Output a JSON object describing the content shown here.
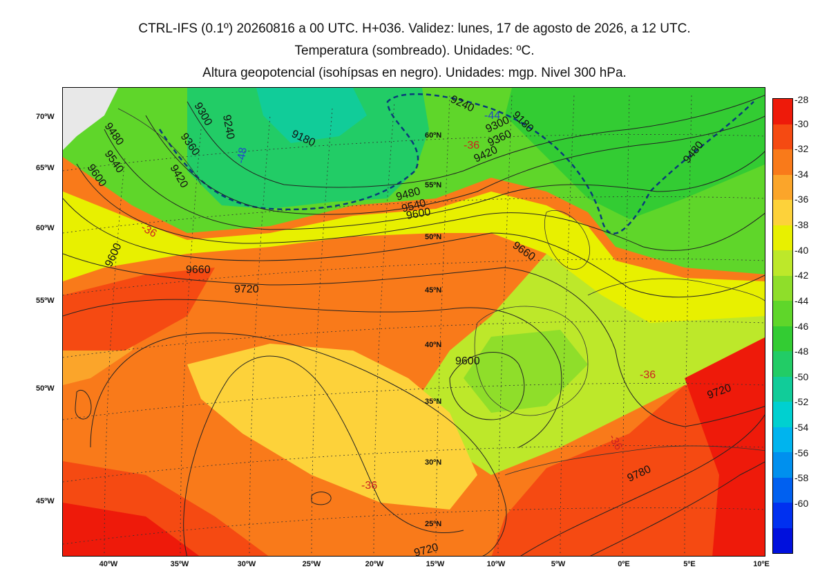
{
  "header": {
    "line1": "CTRL-IFS (0.1º) 20260816 a 00 UTC. H+036. Validez: lunes, 17 de agosto de 2026, a 12 UTC.",
    "line2": "Temperatura (sombreado). Unidades: ºC.",
    "line3": "Altura geopotencial (isohípsas en negro). Unidades: mgp. Nivel 300 hPa."
  },
  "map": {
    "lat_labels": [
      "70ºW",
      "65ºW",
      "60ºW",
      "55ºW",
      "50ºW",
      "45ºW"
    ],
    "lon_labels": [
      "40ºW",
      "35ºW",
      "30ºW",
      "25ºW",
      "20ºW",
      "15ºW",
      "10ºW",
      "5ºW",
      "0ºE",
      "5ºE",
      "10ºE"
    ],
    "inner_lat_labels": [
      "60ºN",
      "55ºN",
      "50ºN",
      "45ºN",
      "40ºN",
      "35ºN",
      "30ºN",
      "25ºN"
    ],
    "geopotential_labels": [
      "9180",
      "9240",
      "9300",
      "9360",
      "9420",
      "9480",
      "9540",
      "9600",
      "9660",
      "9720",
      "9780",
      "9240",
      "9300",
      "9360",
      "9420",
      "9480",
      "9540",
      "9600",
      "9660",
      "9600",
      "9720",
      "9720",
      "9780",
      "9180",
      "9480"
    ],
    "temperature_labels": [
      "-36",
      "-36",
      "-36",
      "-36",
      "-36",
      "-48",
      "-44"
    ],
    "colors": {
      "land_outside": "#e8e8e8",
      "contour": "#222222",
      "isotherm_dashed": "#0a3a7a"
    }
  },
  "colorbar": {
    "ticks": [
      "-28",
      "-30",
      "-32",
      "-34",
      "-36",
      "-38",
      "-40",
      "-42",
      "-44",
      "-46",
      "-48",
      "-50",
      "-52",
      "-54",
      "-56",
      "-58",
      "-60"
    ],
    "colors": [
      "#ee1a0a",
      "#f54a12",
      "#f97a1a",
      "#fba52a",
      "#fdd23a",
      "#e8f000",
      "#bde82a",
      "#8fde2a",
      "#5fd62a",
      "#33cc33",
      "#22cc66",
      "#11cc99",
      "#00d0d0",
      "#00b4ee",
      "#0090ee",
      "#0060f0",
      "#0030f0",
      "#0010dd"
    ]
  }
}
